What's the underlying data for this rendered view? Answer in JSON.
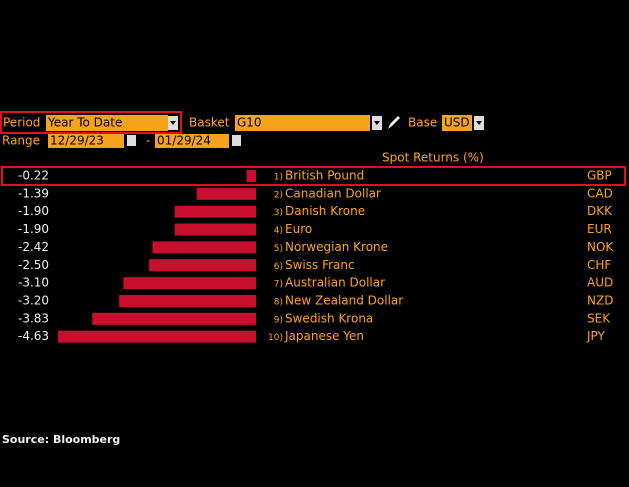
{
  "controls": {
    "period_label": "Period",
    "period": "Year To Date",
    "basket_label": "Basket",
    "basket": "G10",
    "base_label": "Base",
    "base": "USD",
    "range_label": "Range",
    "range_start": "12/29/23",
    "range_separator": "-",
    "range_end": "01/29/24"
  },
  "chart_data": {
    "type": "bar",
    "orientation": "horizontal",
    "title": "Spot Returns (%)",
    "ranks": [
      "1)",
      "2)",
      "3)",
      "4)",
      "5)",
      "6)",
      "7)",
      "8)",
      "9)",
      "10)"
    ],
    "categories": [
      "British Pound",
      "Canadian Dollar",
      "Danish Krone",
      "Euro",
      "Norwegian Krone",
      "Swiss Franc",
      "Australian Dollar",
      "New Zealand Dollar",
      "Swedish Krona",
      "Japanese Yen"
    ],
    "codes": [
      "GBP",
      "CAD",
      "DKK",
      "EUR",
      "NOK",
      "CHF",
      "AUD",
      "NZD",
      "SEK",
      "JPY"
    ],
    "values": [
      -0.22,
      -1.39,
      -1.9,
      -1.9,
      -2.42,
      -2.5,
      -3.1,
      -3.2,
      -3.83,
      -4.63
    ],
    "value_labels": [
      "-0.22",
      "-1.39",
      "-1.90",
      "-1.90",
      "-2.42",
      "-2.50",
      "-3.10",
      "-3.20",
      "-3.83",
      "-4.63"
    ],
    "color": "#c8102e"
  },
  "source": "Source: Bloomberg"
}
